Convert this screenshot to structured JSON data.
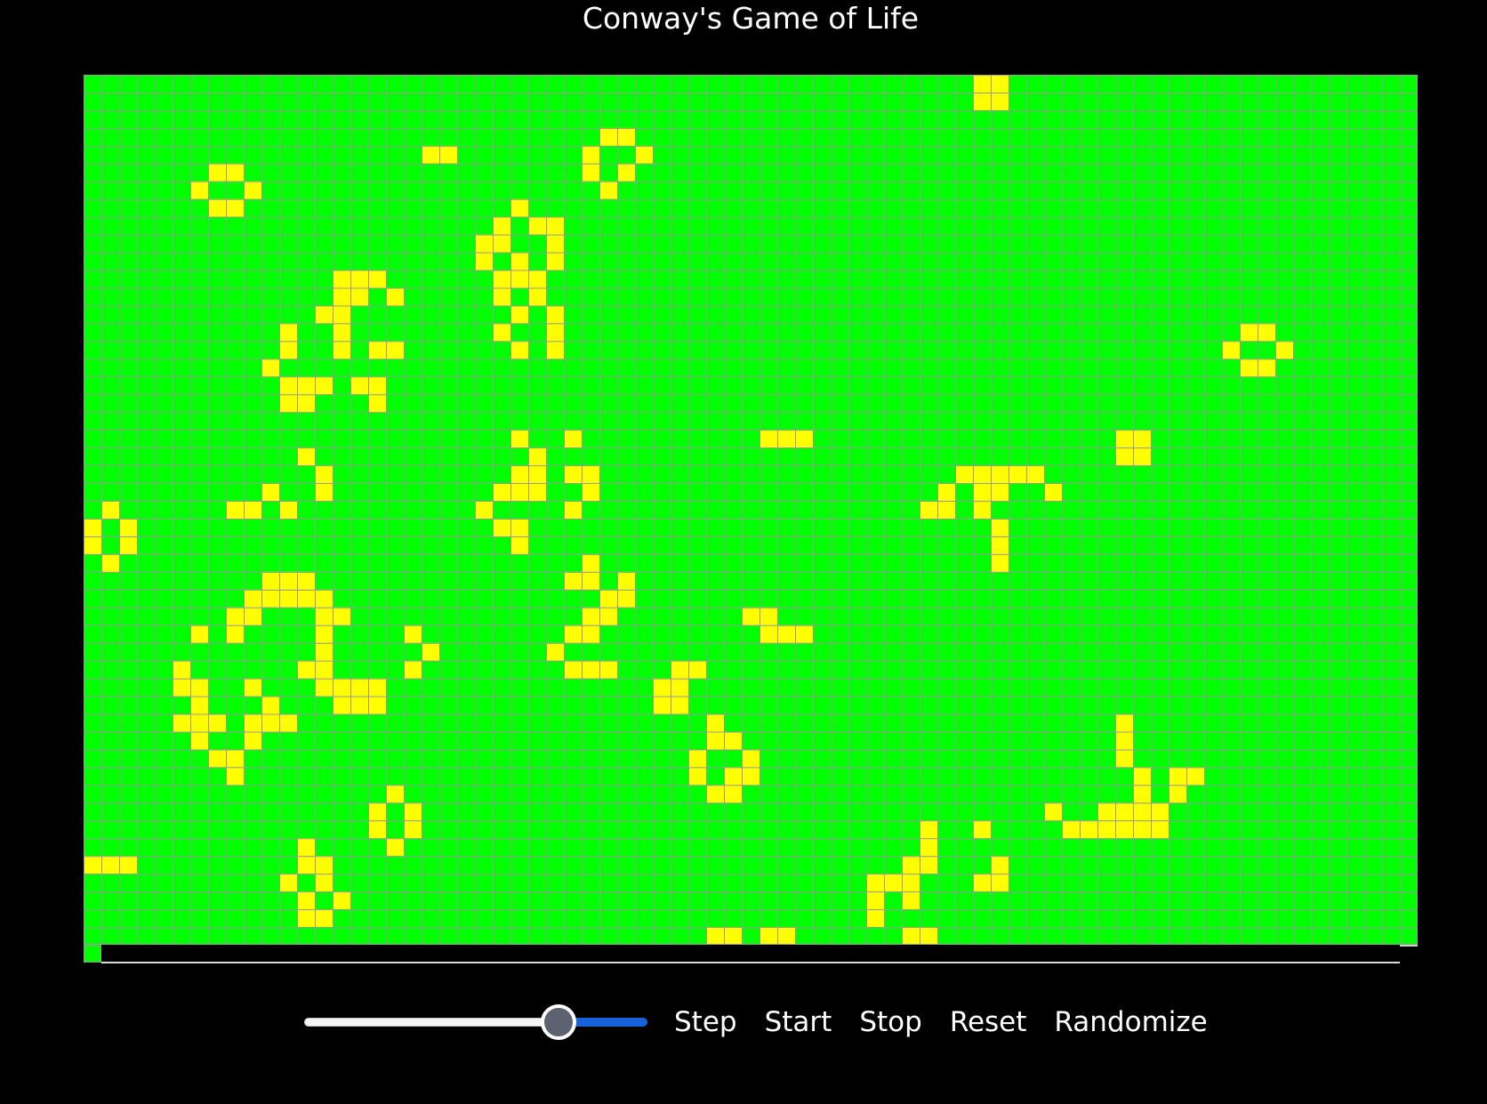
{
  "title": "Conway's Game of Life",
  "colors": {
    "background": "#000000",
    "dead_cell": "#00ff00",
    "alive_cell": "#ffff00",
    "grid_line": "#9a9a9a",
    "slider_fill": "#1763d9"
  },
  "grid": {
    "columns": 75,
    "rows": 49,
    "alive_cells": [
      [
        50,
        0
      ],
      [
        51,
        0
      ],
      [
        50,
        1
      ],
      [
        51,
        1
      ],
      [
        29,
        3
      ],
      [
        30,
        3
      ],
      [
        19,
        4
      ],
      [
        20,
        4
      ],
      [
        28,
        4
      ],
      [
        31,
        4
      ],
      [
        7,
        5
      ],
      [
        8,
        5
      ],
      [
        28,
        5
      ],
      [
        30,
        5
      ],
      [
        6,
        6
      ],
      [
        9,
        6
      ],
      [
        29,
        6
      ],
      [
        7,
        7
      ],
      [
        8,
        7
      ],
      [
        24,
        7
      ],
      [
        23,
        8
      ],
      [
        25,
        8
      ],
      [
        26,
        8
      ],
      [
        22,
        9
      ],
      [
        23,
        9
      ],
      [
        26,
        9
      ],
      [
        22,
        10
      ],
      [
        24,
        10
      ],
      [
        26,
        10
      ],
      [
        14,
        11
      ],
      [
        15,
        11
      ],
      [
        16,
        11
      ],
      [
        23,
        11
      ],
      [
        24,
        11
      ],
      [
        25,
        11
      ],
      [
        14,
        12
      ],
      [
        15,
        12
      ],
      [
        17,
        12
      ],
      [
        23,
        12
      ],
      [
        25,
        12
      ],
      [
        13,
        13
      ],
      [
        14,
        13
      ],
      [
        24,
        13
      ],
      [
        26,
        13
      ],
      [
        11,
        14
      ],
      [
        14,
        14
      ],
      [
        23,
        14
      ],
      [
        26,
        14
      ],
      [
        11,
        15
      ],
      [
        14,
        15
      ],
      [
        16,
        15
      ],
      [
        17,
        15
      ],
      [
        24,
        15
      ],
      [
        26,
        15
      ],
      [
        65,
        14
      ],
      [
        66,
        14
      ],
      [
        64,
        15
      ],
      [
        67,
        15
      ],
      [
        10,
        16
      ],
      [
        11,
        17
      ],
      [
        12,
        17
      ],
      [
        13,
        17
      ],
      [
        15,
        17
      ],
      [
        16,
        17
      ],
      [
        65,
        16
      ],
      [
        66,
        16
      ],
      [
        11,
        18
      ],
      [
        12,
        18
      ],
      [
        16,
        18
      ],
      [
        24,
        20
      ],
      [
        27,
        20
      ],
      [
        38,
        20
      ],
      [
        39,
        20
      ],
      [
        40,
        20
      ],
      [
        58,
        20
      ],
      [
        59,
        20
      ],
      [
        12,
        21
      ],
      [
        25,
        21
      ],
      [
        58,
        21
      ],
      [
        59,
        21
      ],
      [
        13,
        22
      ],
      [
        24,
        22
      ],
      [
        25,
        22
      ],
      [
        27,
        22
      ],
      [
        28,
        22
      ],
      [
        49,
        22
      ],
      [
        50,
        22
      ],
      [
        51,
        22
      ],
      [
        52,
        22
      ],
      [
        53,
        22
      ],
      [
        10,
        23
      ],
      [
        13,
        23
      ],
      [
        23,
        23
      ],
      [
        24,
        23
      ],
      [
        25,
        23
      ],
      [
        28,
        23
      ],
      [
        48,
        23
      ],
      [
        50,
        23
      ],
      [
        51,
        23
      ],
      [
        54,
        23
      ],
      [
        1,
        24
      ],
      [
        8,
        24
      ],
      [
        9,
        24
      ],
      [
        11,
        24
      ],
      [
        22,
        24
      ],
      [
        27,
        24
      ],
      [
        47,
        24
      ],
      [
        48,
        24
      ],
      [
        50,
        24
      ],
      [
        0,
        25
      ],
      [
        2,
        25
      ],
      [
        23,
        25
      ],
      [
        24,
        25
      ],
      [
        51,
        25
      ],
      [
        0,
        26
      ],
      [
        2,
        26
      ],
      [
        24,
        26
      ],
      [
        51,
        26
      ],
      [
        1,
        27
      ],
      [
        28,
        27
      ],
      [
        51,
        27
      ],
      [
        10,
        28
      ],
      [
        11,
        28
      ],
      [
        12,
        28
      ],
      [
        27,
        28
      ],
      [
        28,
        28
      ],
      [
        30,
        28
      ],
      [
        9,
        29
      ],
      [
        10,
        29
      ],
      [
        11,
        29
      ],
      [
        12,
        29
      ],
      [
        13,
        29
      ],
      [
        29,
        29
      ],
      [
        30,
        29
      ],
      [
        8,
        30
      ],
      [
        9,
        30
      ],
      [
        13,
        30
      ],
      [
        14,
        30
      ],
      [
        28,
        30
      ],
      [
        29,
        30
      ],
      [
        37,
        30
      ],
      [
        38,
        30
      ],
      [
        6,
        31
      ],
      [
        8,
        31
      ],
      [
        13,
        31
      ],
      [
        18,
        31
      ],
      [
        27,
        31
      ],
      [
        28,
        31
      ],
      [
        38,
        31
      ],
      [
        39,
        31
      ],
      [
        40,
        31
      ],
      [
        13,
        32
      ],
      [
        19,
        32
      ],
      [
        26,
        32
      ],
      [
        5,
        33
      ],
      [
        12,
        33
      ],
      [
        13,
        33
      ],
      [
        18,
        33
      ],
      [
        27,
        33
      ],
      [
        28,
        33
      ],
      [
        29,
        33
      ],
      [
        33,
        33
      ],
      [
        34,
        33
      ],
      [
        5,
        34
      ],
      [
        6,
        34
      ],
      [
        9,
        34
      ],
      [
        13,
        34
      ],
      [
        14,
        34
      ],
      [
        15,
        34
      ],
      [
        16,
        34
      ],
      [
        32,
        34
      ],
      [
        33,
        34
      ],
      [
        6,
        35
      ],
      [
        10,
        35
      ],
      [
        14,
        35
      ],
      [
        15,
        35
      ],
      [
        16,
        35
      ],
      [
        32,
        35
      ],
      [
        33,
        35
      ],
      [
        5,
        36
      ],
      [
        6,
        36
      ],
      [
        7,
        36
      ],
      [
        9,
        36
      ],
      [
        10,
        36
      ],
      [
        11,
        36
      ],
      [
        35,
        36
      ],
      [
        58,
        36
      ],
      [
        6,
        37
      ],
      [
        9,
        37
      ],
      [
        35,
        37
      ],
      [
        36,
        37
      ],
      [
        58,
        37
      ],
      [
        7,
        38
      ],
      [
        8,
        38
      ],
      [
        34,
        38
      ],
      [
        37,
        38
      ],
      [
        58,
        38
      ],
      [
        8,
        39
      ],
      [
        34,
        39
      ],
      [
        36,
        39
      ],
      [
        37,
        39
      ],
      [
        59,
        39
      ],
      [
        61,
        39
      ],
      [
        62,
        39
      ],
      [
        17,
        40
      ],
      [
        35,
        40
      ],
      [
        36,
        40
      ],
      [
        59,
        40
      ],
      [
        61,
        40
      ],
      [
        16,
        41
      ],
      [
        18,
        41
      ],
      [
        54,
        41
      ],
      [
        57,
        41
      ],
      [
        58,
        41
      ],
      [
        59,
        41
      ],
      [
        60,
        41
      ],
      [
        16,
        42
      ],
      [
        18,
        42
      ],
      [
        47,
        42
      ],
      [
        50,
        42
      ],
      [
        55,
        42
      ],
      [
        56,
        42
      ],
      [
        57,
        42
      ],
      [
        58,
        42
      ],
      [
        59,
        42
      ],
      [
        60,
        42
      ],
      [
        12,
        43
      ],
      [
        17,
        43
      ],
      [
        47,
        43
      ],
      [
        0,
        44
      ],
      [
        1,
        44
      ],
      [
        2,
        44
      ],
      [
        12,
        44
      ],
      [
        13,
        44
      ],
      [
        46,
        44
      ],
      [
        47,
        44
      ],
      [
        51,
        44
      ],
      [
        11,
        45
      ],
      [
        13,
        45
      ],
      [
        44,
        45
      ],
      [
        45,
        45
      ],
      [
        46,
        45
      ],
      [
        50,
        45
      ],
      [
        51,
        45
      ],
      [
        12,
        46
      ],
      [
        14,
        46
      ],
      [
        44,
        46
      ],
      [
        46,
        46
      ],
      [
        12,
        47
      ],
      [
        13,
        47
      ],
      [
        44,
        47
      ],
      [
        35,
        48
      ],
      [
        36,
        48
      ],
      [
        38,
        48
      ],
      [
        39,
        48
      ],
      [
        46,
        48
      ],
      [
        47,
        48
      ]
    ]
  },
  "controls": {
    "speed_value": 0.74,
    "step_label": "Step",
    "start_label": "Start",
    "stop_label": "Stop",
    "reset_label": "Reset",
    "randomize_label": "Randomize"
  }
}
